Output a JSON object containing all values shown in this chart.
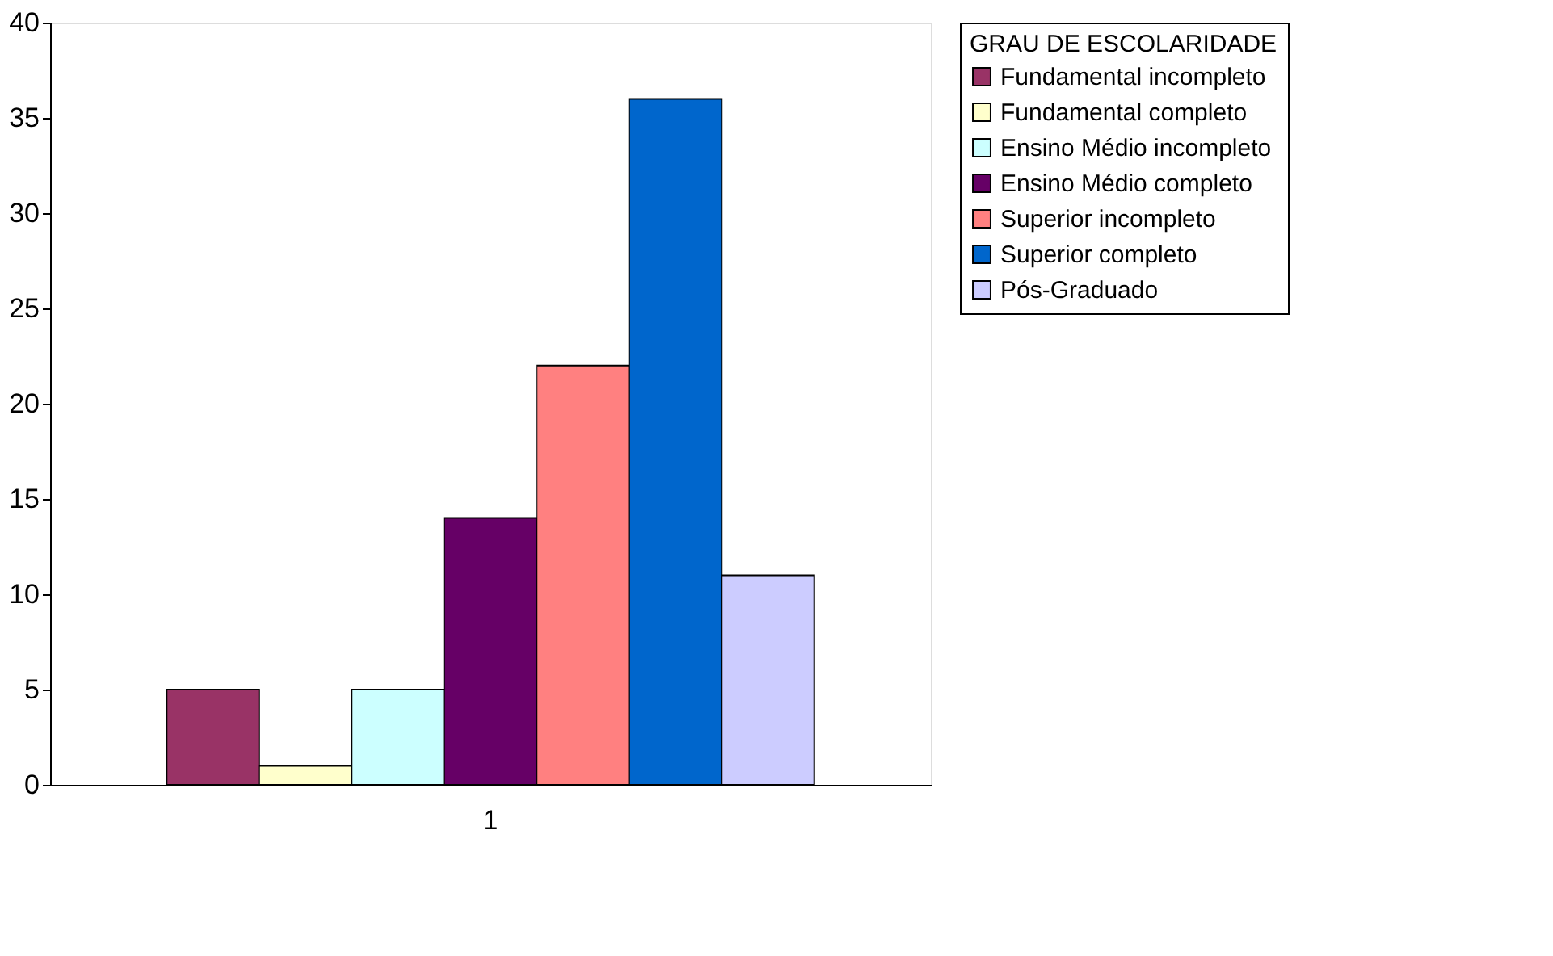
{
  "chart_data": {
    "type": "bar",
    "categories": [
      "1"
    ],
    "legend_title": "GRAU DE ESCOLARIDADE",
    "ylim": [
      0,
      40
    ],
    "yticks": [
      0,
      5,
      10,
      15,
      20,
      25,
      30,
      35,
      40
    ],
    "grid": false,
    "legend": "right",
    "series": [
      {
        "name": "Fundamental incompleto",
        "color": "#993366",
        "values": [
          5
        ]
      },
      {
        "name": "Fundamental completo",
        "color": "#ffffcc",
        "values": [
          1
        ]
      },
      {
        "name": "Ensino Médio incompleto",
        "color": "#ccffff",
        "values": [
          5
        ]
      },
      {
        "name": "Ensino Médio completo",
        "color": "#660066",
        "values": [
          14
        ]
      },
      {
        "name": "Superior incompleto",
        "color": "#ff8080",
        "values": [
          22
        ]
      },
      {
        "name": "Superior completo",
        "color": "#0066cc",
        "values": [
          36
        ]
      },
      {
        "name": "Pós-Graduado",
        "color": "#ccccff",
        "values": [
          11
        ]
      }
    ]
  }
}
